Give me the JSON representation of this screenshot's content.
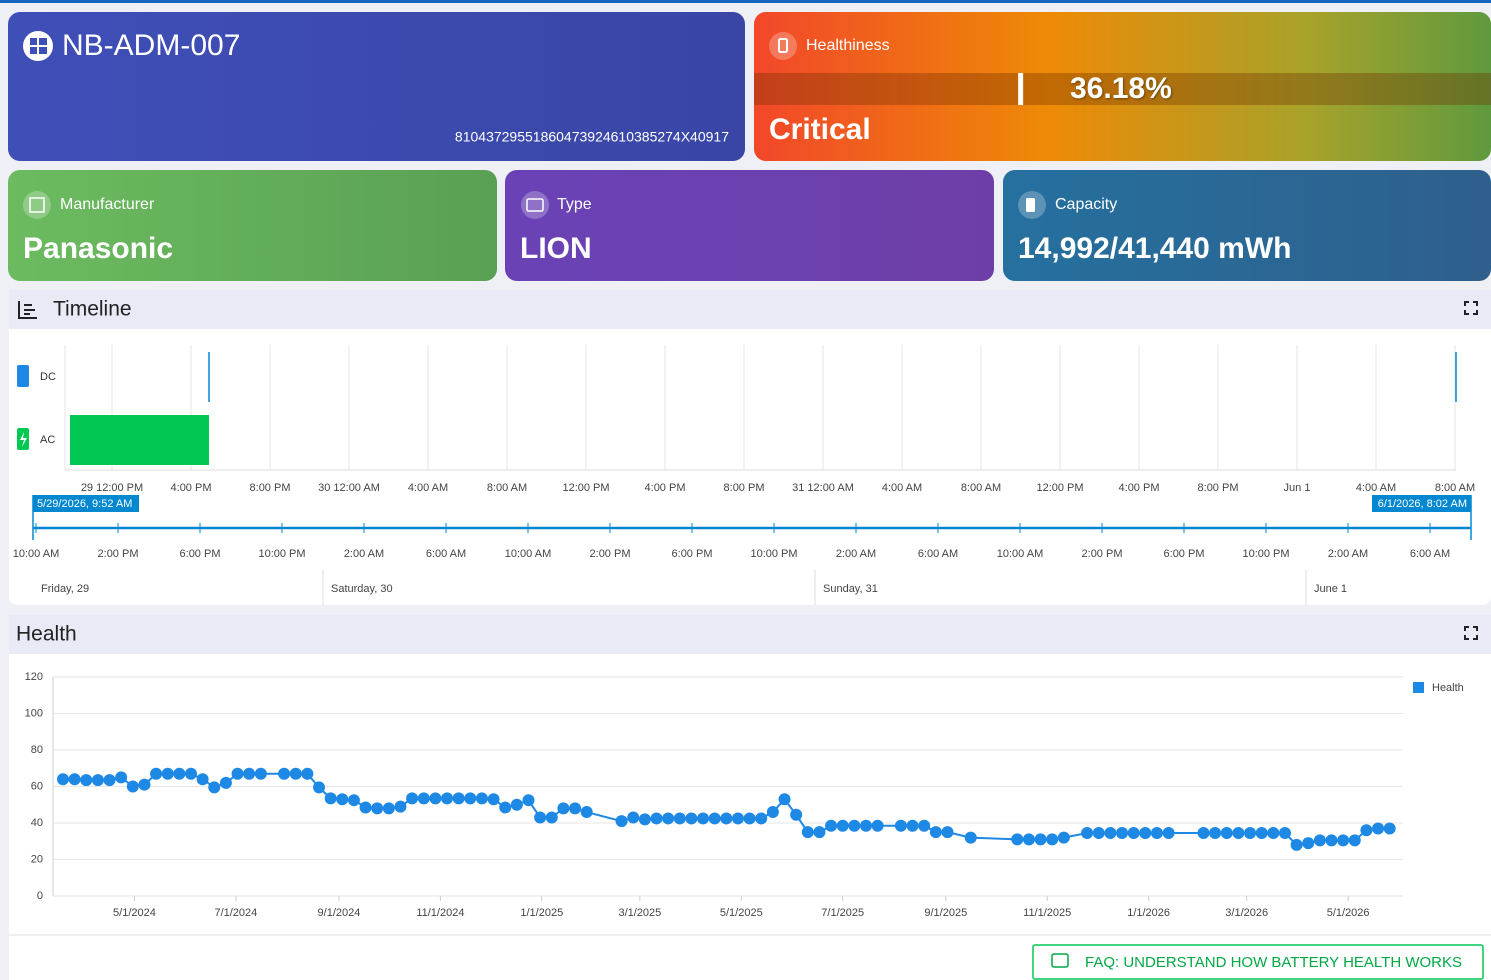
{
  "device": {
    "name": "NB-ADM-007",
    "serial": "81043729551860473924610385274X40917"
  },
  "health_card": {
    "label": "Healthiness",
    "value": 36.18,
    "value_label": "36.18%",
    "status": "Critical"
  },
  "manufacturer": {
    "label": "Manufacturer",
    "value": "Panasonic"
  },
  "battery_type": {
    "label": "Type",
    "value": "LION"
  },
  "capacity": {
    "label": "Capacity",
    "value": "14,992/41,440 mWh"
  },
  "timeline": {
    "title": "Timeline",
    "rows": [
      "DC",
      "AC"
    ],
    "top_axis": [
      "29 12:00 PM",
      "4:00 PM",
      "8:00 PM",
      "30 12:00 AM",
      "4:00 AM",
      "8:00 AM",
      "12:00 PM",
      "4:00 PM",
      "8:00 PM",
      "31 12:00 AM",
      "4:00 AM",
      "8:00 AM",
      "12:00 PM",
      "4:00 PM",
      "8:00 PM",
      "Jun 1",
      "4:00 AM",
      "8:00 AM"
    ],
    "range_start": "5/29/2026, 9:52 AM",
    "range_end": "6/1/2026, 8:02 AM",
    "bottom_axis": [
      "10:00 AM",
      "2:00 PM",
      "6:00 PM",
      "10:00 PM",
      "2:00 AM",
      "6:00 AM",
      "10:00 AM",
      "2:00 PM",
      "6:00 PM",
      "10:00 PM",
      "2:00 AM",
      "6:00 AM",
      "10:00 AM",
      "2:00 PM",
      "6:00 PM",
      "10:00 PM",
      "2:00 AM",
      "6:00 AM"
    ],
    "days": [
      "Friday, 29",
      "Saturday, 30",
      "Sunday, 31",
      "June 1"
    ]
  },
  "chart_data": {
    "type": "line",
    "title": "Health",
    "x": [
      "2024-03-19",
      "2024-03-26",
      "2024-04-02",
      "2024-04-09",
      "2024-04-16",
      "2024-04-23",
      "2024-04-30",
      "2024-05-07",
      "2024-05-14",
      "2024-05-21",
      "2024-05-28",
      "2024-06-04",
      "2024-06-11",
      "2024-06-18",
      "2024-06-25",
      "2024-07-02",
      "2024-07-09",
      "2024-07-16",
      "2024-07-30",
      "2024-08-06",
      "2024-08-13",
      "2024-08-20",
      "2024-08-27",
      "2024-09-03",
      "2024-09-10",
      "2024-09-17",
      "2024-09-24",
      "2024-10-01",
      "2024-10-08",
      "2024-10-15",
      "2024-10-22",
      "2024-10-29",
      "2024-11-05",
      "2024-11-12",
      "2024-11-19",
      "2024-11-26",
      "2024-12-03",
      "2024-12-10",
      "2024-12-17",
      "2024-12-24",
      "2024-12-31",
      "2025-01-07",
      "2025-01-14",
      "2025-01-21",
      "2025-01-28",
      "2025-02-18",
      "2025-02-25",
      "2025-03-04",
      "2025-03-11",
      "2025-03-18",
      "2025-03-25",
      "2025-04-01",
      "2025-04-08",
      "2025-04-15",
      "2025-04-22",
      "2025-04-29",
      "2025-05-06",
      "2025-05-13",
      "2025-05-20",
      "2025-05-27",
      "2025-06-03",
      "2025-06-10",
      "2025-06-17",
      "2025-06-24",
      "2025-07-01",
      "2025-07-08",
      "2025-07-15",
      "2025-07-22",
      "2025-08-05",
      "2025-08-12",
      "2025-08-19",
      "2025-08-26",
      "2025-09-02",
      "2025-09-16",
      "2025-10-14",
      "2025-10-21",
      "2025-10-28",
      "2025-11-04",
      "2025-11-11",
      "2025-11-25",
      "2025-12-02",
      "2025-12-09",
      "2025-12-16",
      "2025-12-23",
      "2025-12-30",
      "2026-01-06",
      "2026-01-13",
      "2026-02-03",
      "2026-02-10",
      "2026-02-17",
      "2026-02-24",
      "2026-03-03",
      "2026-03-10",
      "2026-03-17",
      "2026-03-24",
      "2026-03-31",
      "2026-04-07",
      "2026-04-14",
      "2026-04-21",
      "2026-04-28",
      "2026-05-05",
      "2026-05-12",
      "2026-05-19",
      "2026-05-26"
    ],
    "series": [
      {
        "name": "Health",
        "color": "#1e88e5",
        "values": [
          64,
          64,
          63.5,
          63.5,
          63.5,
          65,
          60,
          61,
          67,
          67,
          67,
          67,
          64,
          59.5,
          62,
          67,
          67,
          67,
          67,
          67,
          67,
          59.5,
          53.5,
          53,
          52.5,
          48.5,
          48,
          48,
          49,
          53.5,
          53.5,
          53.5,
          53.5,
          53.5,
          53.5,
          53.5,
          53,
          48.5,
          50,
          52.5,
          43,
          43,
          48,
          48,
          46,
          41,
          43,
          42,
          42.5,
          42.5,
          42.5,
          42.5,
          42.5,
          42.5,
          42.5,
          42.5,
          42.5,
          42.5,
          46,
          53,
          44.5,
          35,
          35,
          38.5,
          38.5,
          38.5,
          38.5,
          38.5,
          38.5,
          38.5,
          38.5,
          35,
          35,
          32,
          31,
          31,
          31,
          31,
          32,
          34.5,
          34.5,
          34.5,
          34.5,
          34.5,
          34.5,
          34.5,
          34.5,
          34.5,
          34.5,
          34.5,
          34.5,
          34.5,
          34.5,
          34.5,
          34.5,
          28,
          29,
          30.5,
          30.5,
          30.5,
          30.5,
          36,
          37,
          37
        ]
      }
    ],
    "xlim": [
      "2024-03-13",
      "2026-06-03"
    ],
    "xticks": [
      {
        "value": "2024-05-01",
        "label": "5/1/2024"
      },
      {
        "value": "2024-07-01",
        "label": "7/1/2024"
      },
      {
        "value": "2024-09-01",
        "label": "9/1/2024"
      },
      {
        "value": "2024-11-01",
        "label": "11/1/2024"
      },
      {
        "value": "2025-01-01",
        "label": "1/1/2025"
      },
      {
        "value": "2025-03-01",
        "label": "3/1/2025"
      },
      {
        "value": "2025-05-01",
        "label": "5/1/2025"
      },
      {
        "value": "2025-07-01",
        "label": "7/1/2025"
      },
      {
        "value": "2025-09-01",
        "label": "9/1/2025"
      },
      {
        "value": "2025-11-01",
        "label": "11/1/2025"
      },
      {
        "value": "2026-01-01",
        "label": "1/1/2026"
      },
      {
        "value": "2026-03-01",
        "label": "3/1/2026"
      },
      {
        "value": "2026-05-01",
        "label": "5/1/2026"
      }
    ],
    "ylim": [
      0,
      120
    ],
    "yticks": [
      0,
      20,
      40,
      60,
      80,
      100,
      120
    ],
    "grid": true,
    "legend": "top-right"
  },
  "faq": "FAQ: UNDERSTAND HOW BATTERY HEALTH WORKS"
}
